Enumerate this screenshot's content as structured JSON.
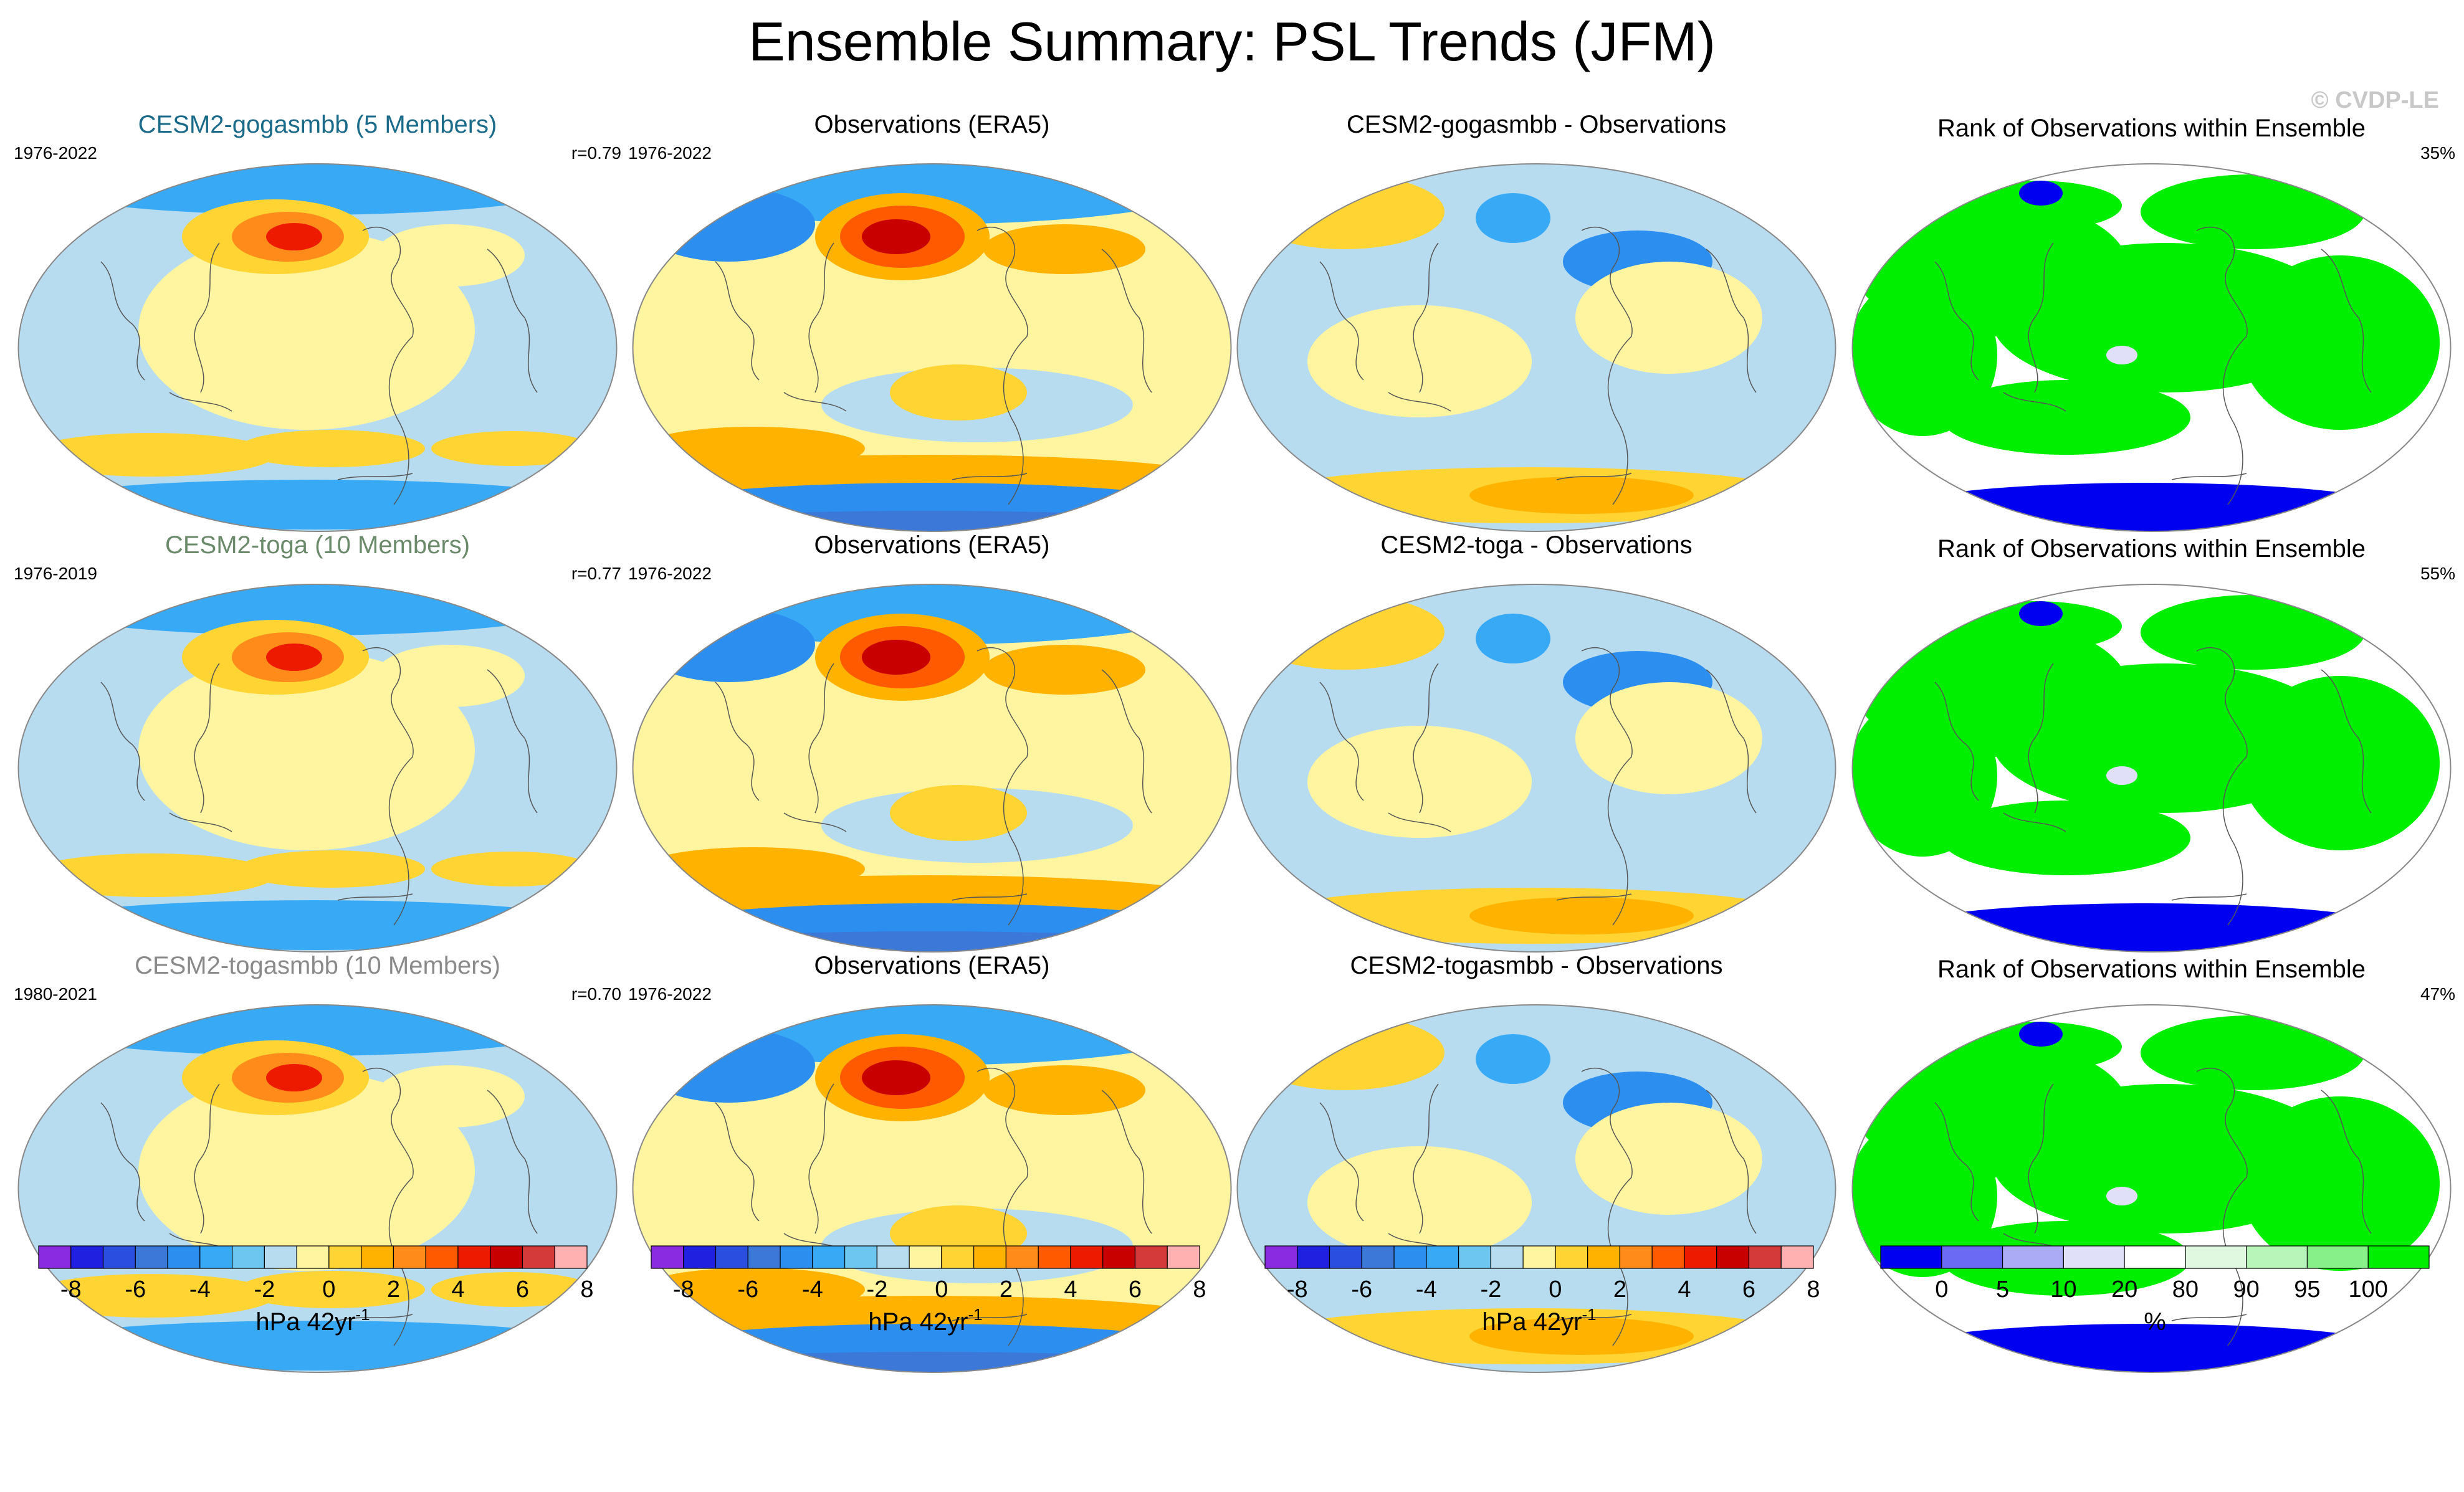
{
  "title": "Ensemble Summary: PSL Trends (JFM)",
  "watermark": "© CVDP-LE",
  "chart_data": [
    {
      "type": "heatmap",
      "row": 0,
      "col": 0,
      "kind": "model",
      "title": "CESM2-gogasmbb (5 Members)",
      "title_color": "#1a6a8a",
      "period": "1976-2022",
      "corr": "r=0.79",
      "pattern": "model"
    },
    {
      "type": "heatmap",
      "row": 0,
      "col": 1,
      "kind": "obs",
      "title": "Observations (ERA5)",
      "title_color": "#000000",
      "period": "1976-2022",
      "corr": "",
      "pattern": "obs"
    },
    {
      "type": "heatmap",
      "row": 0,
      "col": 2,
      "kind": "diff",
      "title": "CESM2-gogasmbb - Observations",
      "title_color": "#000000",
      "period": "",
      "corr": "",
      "pattern": "diff"
    },
    {
      "type": "heatmap",
      "row": 0,
      "col": 3,
      "kind": "rank",
      "title": "Rank of Observations within Ensemble",
      "title_color": "#000000",
      "period": "",
      "corr": "35%",
      "pattern": "rank"
    },
    {
      "type": "heatmap",
      "row": 1,
      "col": 0,
      "kind": "model",
      "title": "CESM2-toga (10 Members)",
      "title_color": "#6a8a6a",
      "period": "1976-2019",
      "corr": "r=0.77",
      "pattern": "model"
    },
    {
      "type": "heatmap",
      "row": 1,
      "col": 1,
      "kind": "obs",
      "title": "Observations (ERA5)",
      "title_color": "#000000",
      "period": "1976-2022",
      "corr": "",
      "pattern": "obs"
    },
    {
      "type": "heatmap",
      "row": 1,
      "col": 2,
      "kind": "diff",
      "title": "CESM2-toga - Observations",
      "title_color": "#000000",
      "period": "",
      "corr": "",
      "pattern": "diff"
    },
    {
      "type": "heatmap",
      "row": 1,
      "col": 3,
      "kind": "rank",
      "title": "Rank of Observations within Ensemble",
      "title_color": "#000000",
      "period": "",
      "corr": "55%",
      "pattern": "rank"
    },
    {
      "type": "heatmap",
      "row": 2,
      "col": 0,
      "kind": "model",
      "title": "CESM2-togasmbb (10 Members)",
      "title_color": "#8a8a8a",
      "period": "1980-2021",
      "corr": "r=0.70",
      "pattern": "model"
    },
    {
      "type": "heatmap",
      "row": 2,
      "col": 1,
      "kind": "obs",
      "title": "Observations (ERA5)",
      "title_color": "#000000",
      "period": "1976-2022",
      "corr": "",
      "pattern": "obs"
    },
    {
      "type": "heatmap",
      "row": 2,
      "col": 2,
      "kind": "diff",
      "title": "CESM2-togasmbb - Observations",
      "title_color": "#000000",
      "period": "",
      "corr": "",
      "pattern": "diff"
    },
    {
      "type": "heatmap",
      "row": 2,
      "col": 3,
      "kind": "rank",
      "title": "Rank of Observations within Ensemble",
      "title_color": "#000000",
      "period": "",
      "corr": "47%",
      "pattern": "rank"
    }
  ],
  "colorbars": [
    {
      "id": "psl1",
      "colors": [
        "#8a2be2",
        "#2020e0",
        "#2a4fe0",
        "#3c78d8",
        "#2c8ff0",
        "#38aaf5",
        "#6cc6f0",
        "#b8dcef",
        "#fff5a0",
        "#ffd433",
        "#ffb300",
        "#ff8c1a",
        "#ff5a00",
        "#ee1a00",
        "#c80000",
        "#d43a3a",
        "#ffb0b0"
      ],
      "ticks": [
        "-8",
        "-6",
        "-4",
        "-2",
        "0",
        "2",
        "4",
        "6",
        "8"
      ],
      "unit": "hPa 42yr",
      "unit_sup": "-1"
    },
    {
      "id": "psl2",
      "colors": [
        "#8a2be2",
        "#2020e0",
        "#2a4fe0",
        "#3c78d8",
        "#2c8ff0",
        "#38aaf5",
        "#6cc6f0",
        "#b8dcef",
        "#fff5a0",
        "#ffd433",
        "#ffb300",
        "#ff8c1a",
        "#ff5a00",
        "#ee1a00",
        "#c80000",
        "#d43a3a",
        "#ffb0b0"
      ],
      "ticks": [
        "-8",
        "-6",
        "-4",
        "-2",
        "0",
        "2",
        "4",
        "6",
        "8"
      ],
      "unit": "hPa 42yr",
      "unit_sup": "-1"
    },
    {
      "id": "psl3",
      "colors": [
        "#8a2be2",
        "#2020e0",
        "#2a4fe0",
        "#3c78d8",
        "#2c8ff0",
        "#38aaf5",
        "#6cc6f0",
        "#b8dcef",
        "#fff5a0",
        "#ffd433",
        "#ffb300",
        "#ff8c1a",
        "#ff5a00",
        "#ee1a00",
        "#c80000",
        "#d43a3a",
        "#ffb0b0"
      ],
      "ticks": [
        "-8",
        "-6",
        "-4",
        "-2",
        "0",
        "2",
        "4",
        "6",
        "8"
      ],
      "unit": "hPa 42yr",
      "unit_sup": "-1"
    },
    {
      "id": "rank",
      "colors": [
        "#0000f0",
        "#6a6af5",
        "#aaaaf5",
        "#e0e0f8",
        "#ffffff",
        "#e0f8e0",
        "#b8f5b8",
        "#88f088",
        "#00ee00"
      ],
      "ticks": [
        "0",
        "5",
        "10",
        "20",
        "80",
        "90",
        "95",
        "100"
      ],
      "unit": "%",
      "unit_sup": ""
    }
  ]
}
